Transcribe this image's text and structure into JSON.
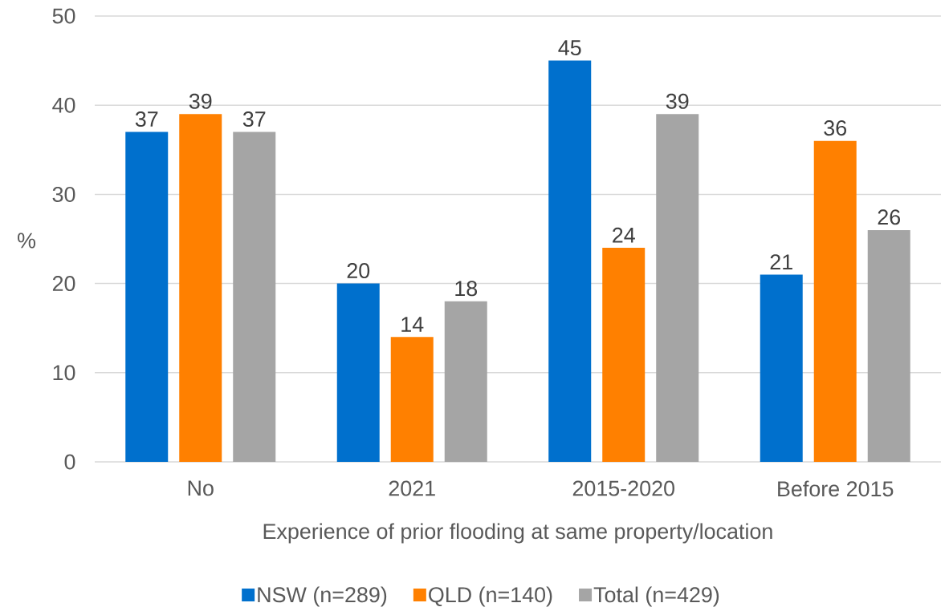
{
  "chart_data": {
    "type": "bar",
    "xlabel": "Experience of prior flooding at same property/location",
    "ylabel": "%",
    "categories": [
      "No",
      "2021",
      "2015-2020",
      "Before 2015"
    ],
    "series": [
      {
        "name": "NSW (n=289)",
        "color": "#0070cd",
        "values": [
          37,
          20,
          45,
          21
        ]
      },
      {
        "name": "QLD (n=140)",
        "color": "#ff8000",
        "values": [
          39,
          14,
          24,
          36
        ]
      },
      {
        "name": "Total (n=429)",
        "color": "#a5a5a5",
        "values": [
          37,
          18,
          39,
          26
        ]
      }
    ],
    "ylim": [
      0,
      50
    ],
    "yticks": [
      0,
      10,
      20,
      30,
      40,
      50
    ],
    "grid": "y",
    "legend": "bottom",
    "data_labels": true
  }
}
